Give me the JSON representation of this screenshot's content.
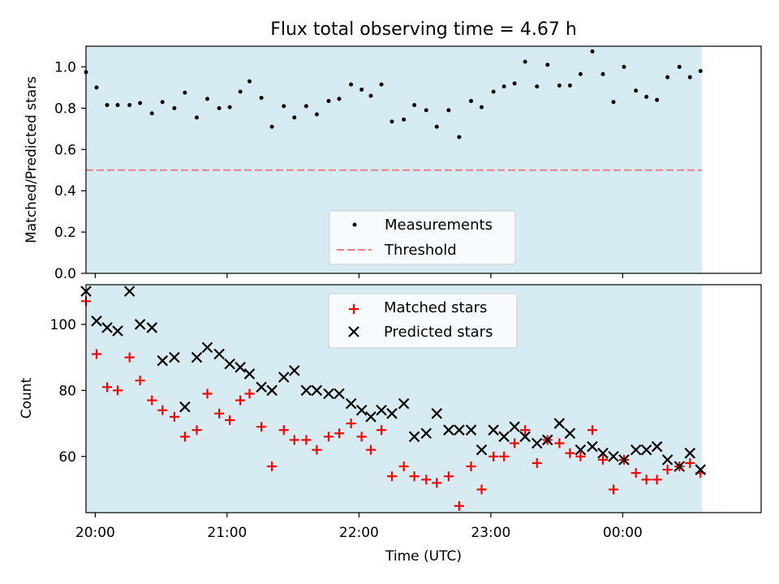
{
  "title": "Flux total observing time = 4.67 h",
  "colors": {
    "band": "#add8e6",
    "threshold": "#f08080",
    "measurement": "#000000",
    "matched": "#ff0000",
    "predicted": "#000000"
  },
  "chart_data": [
    {
      "type": "scatter",
      "title": "Flux total observing time = 4.67 h",
      "xlabel": "",
      "ylabel": "Matched/Predicted stars",
      "xlim": [
        -0.07,
        5.05
      ],
      "ylim": [
        0.0,
        1.1
      ],
      "yticks": [
        0.0,
        0.2,
        0.4,
        0.6,
        0.8,
        1.0
      ],
      "ytick_labels": [
        "0.0",
        "0.2",
        "0.4",
        "0.6",
        "0.8",
        "1.0"
      ],
      "xticks": [
        0,
        1,
        2,
        3,
        4
      ],
      "shaded_range": [
        -0.07,
        4.6
      ],
      "threshold": 0.5,
      "legend": {
        "position": "lower-center",
        "entries": [
          "Measurements",
          "Threshold"
        ]
      },
      "x": [
        -0.07,
        0.01,
        0.09,
        0.17,
        0.26,
        0.34,
        0.43,
        0.51,
        0.6,
        0.68,
        0.77,
        0.85,
        0.94,
        1.02,
        1.1,
        1.17,
        1.26,
        1.34,
        1.43,
        1.51,
        1.6,
        1.68,
        1.77,
        1.85,
        1.94,
        2.02,
        2.09,
        2.17,
        2.25,
        2.34,
        2.42,
        2.51,
        2.59,
        2.68,
        2.76,
        2.85,
        2.93,
        3.02,
        3.1,
        3.18,
        3.26,
        3.35,
        3.43,
        3.52,
        3.6,
        3.68,
        3.77,
        3.85,
        3.93,
        4.01,
        4.1,
        4.18,
        4.26,
        4.34,
        4.43,
        4.51,
        4.59
      ],
      "series": [
        {
          "name": "Measurements",
          "values": [
            0.975,
            0.9,
            0.815,
            0.815,
            0.815,
            0.825,
            0.775,
            0.83,
            0.8,
            0.875,
            0.755,
            0.845,
            0.8,
            0.805,
            0.88,
            0.93,
            0.85,
            0.71,
            0.81,
            0.755,
            0.81,
            0.77,
            0.835,
            0.845,
            0.915,
            0.89,
            0.86,
            0.915,
            0.735,
            0.745,
            0.815,
            0.79,
            0.71,
            0.79,
            0.66,
            0.835,
            0.805,
            0.88,
            0.905,
            0.92,
            1.025,
            0.905,
            1.01,
            0.91,
            0.91,
            0.965,
            1.075,
            0.965,
            0.83,
            1.0,
            0.885,
            0.855,
            0.84,
            0.95,
            1.0,
            0.95,
            0.98
          ]
        }
      ]
    },
    {
      "type": "scatter",
      "title": "",
      "xlabel": "Time (UTC)",
      "ylabel": "Count",
      "xlim": [
        -0.07,
        5.05
      ],
      "ylim": [
        43,
        112
      ],
      "yticks": [
        60,
        80,
        100
      ],
      "ytick_labels": [
        "60",
        "80",
        "100"
      ],
      "xticks": [
        0,
        1,
        2,
        3,
        4
      ],
      "xtick_labels": [
        "20:00",
        "21:00",
        "22:00",
        "23:00",
        "00:00"
      ],
      "shaded_range": [
        -0.07,
        4.6
      ],
      "legend": {
        "position": "top-center",
        "entries": [
          "Matched stars",
          "Predicted stars"
        ]
      },
      "x": [
        -0.07,
        0.01,
        0.09,
        0.17,
        0.26,
        0.34,
        0.43,
        0.51,
        0.6,
        0.68,
        0.77,
        0.85,
        0.94,
        1.02,
        1.1,
        1.17,
        1.26,
        1.34,
        1.43,
        1.51,
        1.6,
        1.68,
        1.77,
        1.85,
        1.94,
        2.02,
        2.09,
        2.17,
        2.25,
        2.34,
        2.42,
        2.51,
        2.59,
        2.68,
        2.76,
        2.85,
        2.93,
        3.02,
        3.1,
        3.18,
        3.26,
        3.35,
        3.43,
        3.52,
        3.6,
        3.68,
        3.77,
        3.85,
        3.93,
        4.01,
        4.1,
        4.18,
        4.26,
        4.34,
        4.43,
        4.51,
        4.59
      ],
      "series": [
        {
          "name": "Matched stars",
          "values": [
            107,
            91,
            81,
            80,
            90,
            83,
            77,
            74,
            72,
            66,
            68,
            79,
            73,
            71,
            77,
            79,
            69,
            57,
            68,
            65,
            65,
            62,
            66,
            67,
            70,
            66,
            62,
            68,
            54,
            57,
            54,
            53,
            52,
            54,
            45,
            57,
            50,
            60,
            60,
            64,
            68,
            58,
            65,
            64,
            61,
            60,
            68,
            59,
            50,
            59,
            55,
            53,
            53,
            56,
            57,
            58,
            55
          ]
        },
        {
          "name": "Predicted stars",
          "values": [
            110,
            101,
            99,
            98,
            110,
            100,
            99,
            89,
            90,
            75,
            90,
            93,
            91,
            88,
            87,
            85,
            81,
            80,
            84,
            86,
            80,
            80,
            79,
            79,
            76,
            74,
            72,
            74,
            73,
            76,
            66,
            67,
            73,
            68,
            68,
            68,
            62,
            68,
            66,
            69,
            66,
            64,
            65,
            70,
            67,
            62,
            63,
            61,
            60,
            59,
            62,
            62,
            63,
            59,
            57,
            61,
            56
          ]
        }
      ]
    }
  ]
}
